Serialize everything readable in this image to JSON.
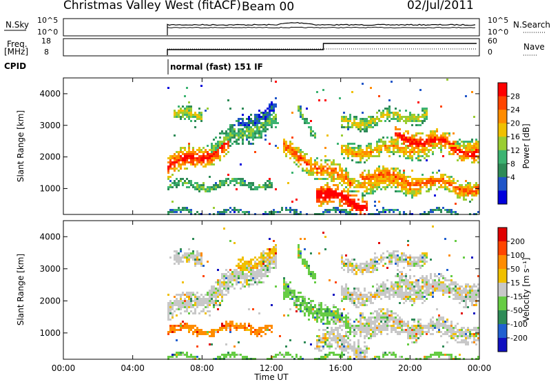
{
  "header": {
    "title": "Christmas Valley West (fitACF)",
    "beam": "Beam 00",
    "date": "02/Jul/2011"
  },
  "top_panels": {
    "nsky_label": "N.Sky",
    "nsky_ticks": [
      "10^5",
      "10^0"
    ],
    "nsearch_label": "N.Search",
    "nsearch_ticks": [
      "10^5",
      "10^0"
    ],
    "freq_label_1": "Freq.",
    "freq_label_2": "[MHz]",
    "freq_ticks": [
      "18",
      "8"
    ],
    "nave_label": "Nave",
    "nave_ticks": [
      "60",
      "0"
    ],
    "cpid_label": "CPID",
    "cpid_text": "normal (fast) 151 IF"
  },
  "chart_data": [
    {
      "type": "heatmap",
      "name": "power",
      "ylabel": "Slant Range [km]",
      "yticks": [
        "4000",
        "3000",
        "2000",
        "1000"
      ],
      "ylim": [
        180,
        4500
      ],
      "colorbar_label": "Power [dB]",
      "colorbar_ticks": [
        "28",
        "24",
        "20",
        "16",
        "12",
        "8",
        "4"
      ],
      "colors": [
        "#0000dc",
        "#1f55c8",
        "#2e8b57",
        "#3cb371",
        "#9acd32",
        "#f0c000",
        "#ff8c00",
        "#ff4500",
        "#ff0000"
      ]
    },
    {
      "type": "heatmap",
      "name": "velocity",
      "ylabel": "Slant Range [km]",
      "yticks": [
        "4000",
        "3000",
        "2000",
        "1000"
      ],
      "ylim": [
        180,
        4500
      ],
      "colorbar_label": "Velocity [m s⁻¹]",
      "colorbar_ticks": [
        "200",
        "100",
        "50",
        "15",
        "-15",
        "-50",
        "-100",
        "-200"
      ],
      "colors": [
        "#1010c0",
        "#2060d0",
        "#2e8b57",
        "#66cc44",
        "#c8c8c8",
        "#f0c000",
        "#ff8c00",
        "#ff4500",
        "#e00000"
      ]
    }
  ],
  "x_axis": {
    "ticks": [
      "00:00",
      "04:00",
      "08:00",
      "12:00",
      "16:00",
      "20:00",
      "00:00"
    ],
    "label": "Time UT"
  }
}
